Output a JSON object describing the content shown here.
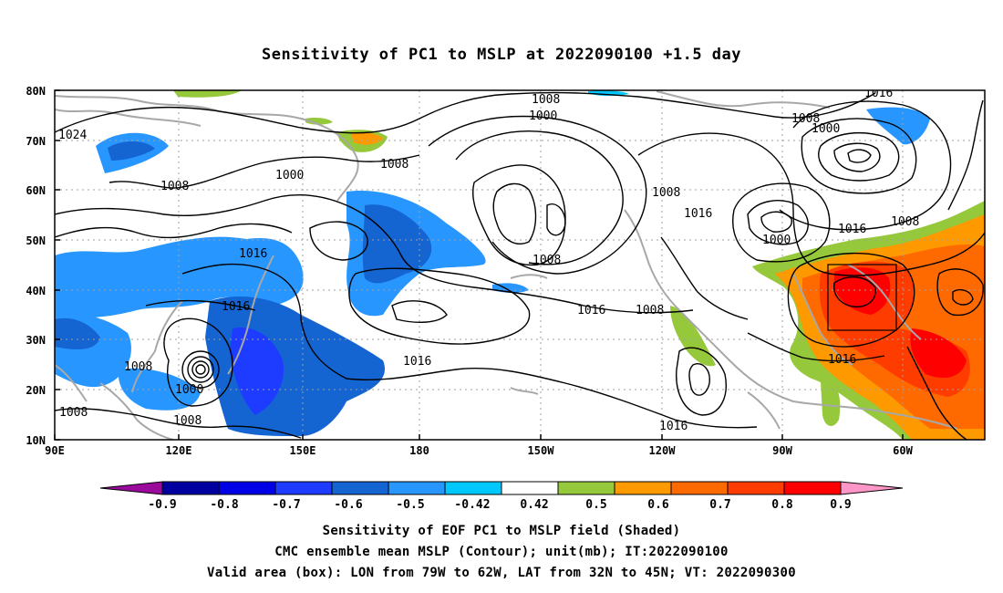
{
  "title": "Sensitivity of PC1 to MSLP at 2022090100 +1.5 day",
  "axes": {
    "lat_labels": [
      "80N",
      "70N",
      "60N",
      "50N",
      "40N",
      "30N",
      "20N",
      "10N"
    ],
    "lon_labels": [
      "90E",
      "120E",
      "150E",
      "180",
      "150W",
      "120W",
      "90W",
      "60W"
    ]
  },
  "contour_labels": [
    "1024",
    "1008",
    "1000",
    "1008",
    "1016",
    "1016",
    "1008",
    "1008",
    "1008",
    "1000",
    "1016",
    "1016",
    "1008",
    "1000",
    "1008",
    "1008",
    "1016",
    "1000",
    "1008",
    "1016",
    "1016",
    "1000",
    "1016",
    "1008",
    "1008",
    "1016"
  ],
  "colorbar": {
    "labels": [
      "-0.9",
      "-0.8",
      "-0.7",
      "-0.6",
      "-0.5",
      "-0.42",
      "0.42",
      "0.5",
      "0.6",
      "0.7",
      "0.8",
      "0.9"
    ],
    "colors": [
      "#9b0b9b",
      "#0000a0",
      "#0000e6",
      "#1e3cff",
      "#1464d2",
      "#2896ff",
      "#00c8ff",
      "#ffffff",
      "#96c83c",
      "#ff9900",
      "#ff6a00",
      "#ff3c00",
      "#ff0000",
      "#ff96c8"
    ]
  },
  "valid_box": {
    "lon_min": -79,
    "lon_max": -62,
    "lat_min": 32,
    "lat_max": 45
  },
  "captions": [
    "Sensitivity of EOF PC1 to MSLP field (Shaded)",
    "CMC ensemble mean MSLP (Contour); unit(mb); IT:2022090100",
    "Valid area (box): LON from 79W to 62W, LAT from 32N to 45N; VT: 2022090300"
  ]
}
